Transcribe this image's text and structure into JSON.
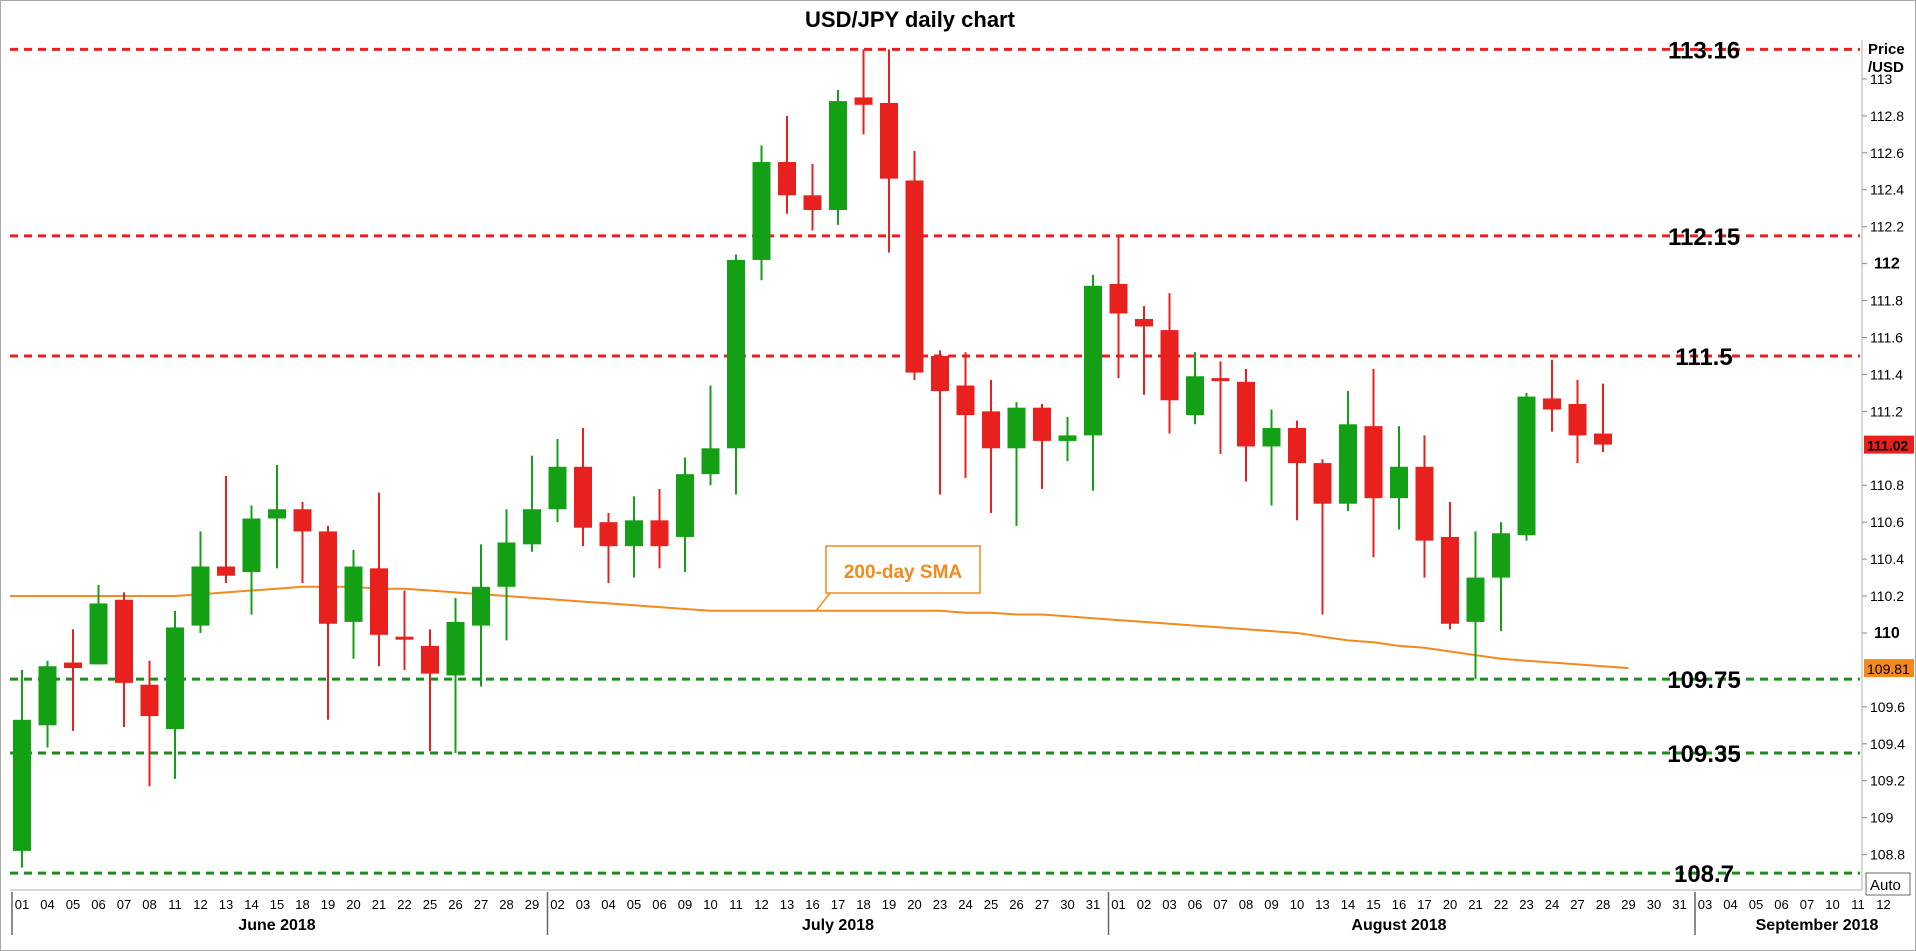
{
  "chart_data": {
    "type": "candlestick",
    "title": "USD/JPY daily chart",
    "ylabel": "Price\n/USD",
    "ylim": [
      108.63,
      113.2
    ],
    "y_ticks": [
      {
        "value": 113,
        "label": "113"
      },
      {
        "value": 112.8,
        "label": "112.8"
      },
      {
        "value": 112.6,
        "label": "112.6"
      },
      {
        "value": 112.4,
        "label": "112.4"
      },
      {
        "value": 112.2,
        "label": "112.2"
      },
      {
        "value": 112,
        "label": "112",
        "bold": true
      },
      {
        "value": 111.8,
        "label": "111.8"
      },
      {
        "value": 111.6,
        "label": "111.6"
      },
      {
        "value": 111.4,
        "label": "111.4"
      },
      {
        "value": 111.2,
        "label": "111.2"
      },
      {
        "value": 110.8,
        "label": "110.8"
      },
      {
        "value": 110.6,
        "label": "110.6"
      },
      {
        "value": 110.4,
        "label": "110.4"
      },
      {
        "value": 110.2,
        "label": "110.2"
      },
      {
        "value": 110,
        "label": "110",
        "bold": true
      },
      {
        "value": 109.6,
        "label": "109.6"
      },
      {
        "value": 109.4,
        "label": "109.4"
      },
      {
        "value": 109.2,
        "label": "109.2"
      },
      {
        "value": 109,
        "label": "109"
      },
      {
        "value": 108.8,
        "label": "108.8"
      }
    ],
    "x_labels": [
      "01",
      "04",
      "05",
      "06",
      "07",
      "08",
      "11",
      "12",
      "13",
      "14",
      "15",
      "18",
      "19",
      "20",
      "21",
      "22",
      "25",
      "26",
      "27",
      "28",
      "29",
      "02",
      "03",
      "04",
      "05",
      "06",
      "09",
      "10",
      "11",
      "12",
      "13",
      "16",
      "17",
      "18",
      "19",
      "20",
      "23",
      "24",
      "25",
      "26",
      "27",
      "30",
      "31",
      "01",
      "02",
      "03",
      "06",
      "07",
      "08",
      "09",
      "10",
      "13",
      "14",
      "15",
      "16",
      "17",
      "20",
      "21",
      "22",
      "23",
      "24",
      "27",
      "28",
      "29",
      "30",
      "31",
      "03",
      "04",
      "05",
      "06",
      "07",
      "10",
      "11",
      "12"
    ],
    "month_labels": [
      {
        "label": "June 2018",
        "index": 10
      },
      {
        "label": "July 2018",
        "index": 32
      },
      {
        "label": "August 2018",
        "index": 54
      },
      {
        "label": "September 2018",
        "index": 70
      }
    ],
    "month_start_indices": [
      0,
      21,
      43,
      66
    ],
    "candles": [
      {
        "date": "01 Jun",
        "open": 108.82,
        "high": 109.8,
        "low": 108.73,
        "close": 109.53
      },
      {
        "date": "04 Jun",
        "open": 109.5,
        "high": 109.85,
        "low": 109.38,
        "close": 109.82
      },
      {
        "date": "05 Jun",
        "open": 109.84,
        "high": 110.02,
        "low": 109.47,
        "close": 109.81
      },
      {
        "date": "06 Jun",
        "open": 109.83,
        "high": 110.26,
        "low": 109.83,
        "close": 110.16
      },
      {
        "date": "07 Jun",
        "open": 110.18,
        "high": 110.22,
        "low": 109.49,
        "close": 109.73
      },
      {
        "date": "08 Jun",
        "open": 109.72,
        "high": 109.85,
        "low": 109.17,
        "close": 109.55
      },
      {
        "date": "11 Jun",
        "open": 109.48,
        "high": 110.12,
        "low": 109.21,
        "close": 110.03
      },
      {
        "date": "12 Jun",
        "open": 110.04,
        "high": 110.55,
        "low": 110.0,
        "close": 110.36
      },
      {
        "date": "13 Jun",
        "open": 110.36,
        "high": 110.85,
        "low": 110.27,
        "close": 110.31
      },
      {
        "date": "14 Jun",
        "open": 110.33,
        "high": 110.69,
        "low": 110.1,
        "close": 110.62
      },
      {
        "date": "15 Jun",
        "open": 110.62,
        "high": 110.91,
        "low": 110.35,
        "close": 110.67
      },
      {
        "date": "18 Jun",
        "open": 110.67,
        "high": 110.71,
        "low": 110.27,
        "close": 110.55
      },
      {
        "date": "19 Jun",
        "open": 110.55,
        "high": 110.58,
        "low": 109.53,
        "close": 110.05
      },
      {
        "date": "20 Jun",
        "open": 110.06,
        "high": 110.45,
        "low": 109.86,
        "close": 110.36
      },
      {
        "date": "21 Jun",
        "open": 110.35,
        "high": 110.76,
        "low": 109.82,
        "close": 109.99
      },
      {
        "date": "22 Jun",
        "open": 109.98,
        "high": 110.23,
        "low": 109.8,
        "close": 109.97
      },
      {
        "date": "25 Jun",
        "open": 109.93,
        "high": 110.02,
        "low": 109.36,
        "close": 109.78
      },
      {
        "date": "26 Jun",
        "open": 109.77,
        "high": 110.19,
        "low": 109.35,
        "close": 110.06
      },
      {
        "date": "27 Jun",
        "open": 110.04,
        "high": 110.48,
        "low": 109.71,
        "close": 110.25
      },
      {
        "date": "28 Jun",
        "open": 110.25,
        "high": 110.67,
        "low": 109.96,
        "close": 110.49
      },
      {
        "date": "29 Jun",
        "open": 110.48,
        "high": 110.96,
        "low": 110.44,
        "close": 110.67
      },
      {
        "date": "02 Jul",
        "open": 110.67,
        "high": 111.05,
        "low": 110.6,
        "close": 110.9
      },
      {
        "date": "03 Jul",
        "open": 110.9,
        "high": 111.11,
        "low": 110.47,
        "close": 110.57
      },
      {
        "date": "04 Jul",
        "open": 110.6,
        "high": 110.65,
        "low": 110.27,
        "close": 110.47
      },
      {
        "date": "05 Jul",
        "open": 110.47,
        "high": 110.74,
        "low": 110.3,
        "close": 110.61
      },
      {
        "date": "06 Jul",
        "open": 110.61,
        "high": 110.78,
        "low": 110.35,
        "close": 110.47
      },
      {
        "date": "09 Jul",
        "open": 110.52,
        "high": 110.95,
        "low": 110.33,
        "close": 110.86
      },
      {
        "date": "10 Jul",
        "open": 110.86,
        "high": 111.34,
        "low": 110.8,
        "close": 111.0
      },
      {
        "date": "11 Jul",
        "open": 111.0,
        "high": 112.05,
        "low": 110.75,
        "close": 112.02
      },
      {
        "date": "12 Jul",
        "open": 112.02,
        "high": 112.64,
        "low": 111.91,
        "close": 112.55
      },
      {
        "date": "13 Jul",
        "open": 112.55,
        "high": 112.8,
        "low": 112.27,
        "close": 112.37
      },
      {
        "date": "16 Jul",
        "open": 112.37,
        "high": 112.54,
        "low": 112.18,
        "close": 112.29
      },
      {
        "date": "17 Jul",
        "open": 112.29,
        "high": 112.94,
        "low": 112.21,
        "close": 112.88
      },
      {
        "date": "18 Jul",
        "open": 112.9,
        "high": 113.16,
        "low": 112.7,
        "close": 112.86
      },
      {
        "date": "19 Jul",
        "open": 112.87,
        "high": 113.16,
        "low": 112.06,
        "close": 112.46
      },
      {
        "date": "20 Jul",
        "open": 112.45,
        "high": 112.61,
        "low": 111.37,
        "close": 111.41
      },
      {
        "date": "23 Jul",
        "open": 111.5,
        "high": 111.53,
        "low": 110.75,
        "close": 111.31
      },
      {
        "date": "24 Jul",
        "open": 111.34,
        "high": 111.52,
        "low": 110.84,
        "close": 111.18
      },
      {
        "date": "25 Jul",
        "open": 111.2,
        "high": 111.37,
        "low": 110.65,
        "close": 111.0
      },
      {
        "date": "26 Jul",
        "open": 111.0,
        "high": 111.25,
        "low": 110.58,
        "close": 111.22
      },
      {
        "date": "27 Jul",
        "open": 111.22,
        "high": 111.24,
        "low": 110.78,
        "close": 111.04
      },
      {
        "date": "30 Jul",
        "open": 111.04,
        "high": 111.17,
        "low": 110.93,
        "close": 111.07
      },
      {
        "date": "31 Jul",
        "open": 111.07,
        "high": 111.94,
        "low": 110.77,
        "close": 111.88
      },
      {
        "date": "01 Aug",
        "open": 111.89,
        "high": 112.15,
        "low": 111.38,
        "close": 111.73
      },
      {
        "date": "02 Aug",
        "open": 111.7,
        "high": 111.77,
        "low": 111.29,
        "close": 111.66
      },
      {
        "date": "03 Aug",
        "open": 111.64,
        "high": 111.84,
        "low": 111.08,
        "close": 111.26
      },
      {
        "date": "06 Aug",
        "open": 111.18,
        "high": 111.52,
        "low": 111.13,
        "close": 111.39
      },
      {
        "date": "07 Aug",
        "open": 111.38,
        "high": 111.47,
        "low": 110.97,
        "close": 111.37
      },
      {
        "date": "08 Aug",
        "open": 111.36,
        "high": 111.43,
        "low": 110.82,
        "close": 111.01
      },
      {
        "date": "09 Aug",
        "open": 111.01,
        "high": 111.21,
        "low": 110.69,
        "close": 111.11
      },
      {
        "date": "10 Aug",
        "open": 111.11,
        "high": 111.15,
        "low": 110.61,
        "close": 110.92
      },
      {
        "date": "13 Aug",
        "open": 110.92,
        "high": 110.94,
        "low": 110.1,
        "close": 110.7
      },
      {
        "date": "14 Aug",
        "open": 110.7,
        "high": 111.31,
        "low": 110.66,
        "close": 111.13
      },
      {
        "date": "15 Aug",
        "open": 111.12,
        "high": 111.43,
        "low": 110.41,
        "close": 110.73
      },
      {
        "date": "16 Aug",
        "open": 110.73,
        "high": 111.12,
        "low": 110.56,
        "close": 110.9
      },
      {
        "date": "17 Aug",
        "open": 110.9,
        "high": 111.07,
        "low": 110.3,
        "close": 110.5
      },
      {
        "date": "20 Aug",
        "open": 110.52,
        "high": 110.71,
        "low": 110.02,
        "close": 110.05
      },
      {
        "date": "21 Aug",
        "open": 110.06,
        "high": 110.55,
        "low": 109.75,
        "close": 110.3
      },
      {
        "date": "22 Aug",
        "open": 110.3,
        "high": 110.6,
        "low": 110.01,
        "close": 110.54
      },
      {
        "date": "23 Aug",
        "open": 110.53,
        "high": 111.3,
        "low": 110.5,
        "close": 111.28
      },
      {
        "date": "24 Aug",
        "open": 111.27,
        "high": 111.48,
        "low": 111.09,
        "close": 111.21
      },
      {
        "date": "27 Aug",
        "open": 111.24,
        "high": 111.37,
        "low": 110.92,
        "close": 111.07
      },
      {
        "date": "28 Aug",
        "open": 111.08,
        "high": 111.35,
        "low": 110.98,
        "close": 111.02
      }
    ],
    "sma": {
      "name": "200-day SMA",
      "start_value": 110.2,
      "values": [
        110.2,
        110.2,
        110.2,
        110.2,
        110.2,
        110.2,
        110.2,
        110.21,
        110.22,
        110.23,
        110.24,
        110.25,
        110.25,
        110.25,
        110.24,
        110.24,
        110.23,
        110.22,
        110.21,
        110.2,
        110.19,
        110.18,
        110.17,
        110.16,
        110.15,
        110.14,
        110.13,
        110.12,
        110.12,
        110.12,
        110.12,
        110.12,
        110.12,
        110.12,
        110.12,
        110.12,
        110.12,
        110.11,
        110.11,
        110.1,
        110.1,
        110.09,
        110.08,
        110.07,
        110.06,
        110.05,
        110.04,
        110.03,
        110.02,
        110.01,
        110.0,
        109.98,
        109.96,
        109.95,
        109.93,
        109.92,
        109.9,
        109.88,
        109.86,
        109.85,
        109.84,
        109.83,
        109.82,
        109.81
      ]
    },
    "sma_label_anchor_index": 32,
    "horizontal_levels": [
      {
        "value": 113.16,
        "label": "113.16",
        "color": "#e8211e"
      },
      {
        "value": 112.15,
        "label": "112.15",
        "color": "#e8211e"
      },
      {
        "value": 111.5,
        "label": "111.5",
        "color": "#e8211e"
      },
      {
        "value": 109.75,
        "label": "109.75",
        "color": "#1f8a1f"
      },
      {
        "value": 109.35,
        "label": "109.35",
        "color": "#1f8a1f"
      },
      {
        "value": 108.7,
        "label": "108.7",
        "color": "#1f8a1f"
      }
    ],
    "last_price_tag": {
      "value": 111.02,
      "label": "111.02"
    },
    "sma_price_tag": {
      "value": 109.81,
      "label": "109.81"
    },
    "auto_button": "Auto",
    "colors": {
      "up": "#14a014",
      "down": "#e8211e",
      "sma": "#f28a1e",
      "resistance": "#e8211e",
      "support": "#1f8a1f",
      "last_tag_bg": "#e8211e",
      "sma_tag_bg": "#f28a1e"
    },
    "grid": false,
    "legend": "none"
  }
}
